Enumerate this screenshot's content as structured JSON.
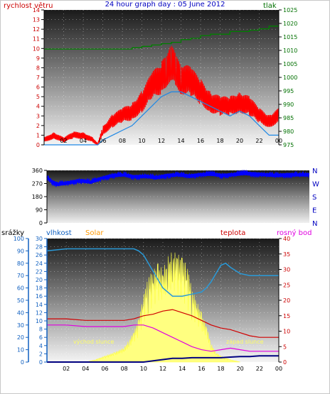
{
  "title": "24 hour graph day : 05 June 2012",
  "colors": {
    "wind": "#ff0000",
    "gust_line": "#1e88e5",
    "pressure": "#008000",
    "direction": "#0000ff",
    "humidity": "#2a9ad8",
    "solar": "#ffff80",
    "temperature": "#d00000",
    "dewpoint": "#e000e0",
    "rain": "#000080",
    "axis_blue": "#1060c0",
    "axis_red": "#cc0000",
    "axis_green": "#007000",
    "solar_label": "#ff9900"
  },
  "chart_data": [
    {
      "type": "line",
      "title": "24 hour graph day : 05 June 2012",
      "x_ticks": [
        "02",
        "04",
        "06",
        "08",
        "10",
        "12",
        "14",
        "16",
        "18",
        "20",
        "22",
        "00"
      ],
      "left_axis": {
        "label": "rychlost větru",
        "range": [
          0,
          14
        ],
        "ticks": [
          "0",
          "1",
          "2",
          "3",
          "4",
          "5",
          "6",
          "7",
          "8",
          "9",
          "10",
          "11",
          "12",
          "13",
          "14"
        ]
      },
      "right_axis": {
        "label": "tlak",
        "range": [
          975,
          1025
        ],
        "ticks": [
          "975",
          "980",
          "985",
          "990",
          "995",
          "1000",
          "1005",
          "1010",
          "1015",
          "1020",
          "1025"
        ]
      },
      "series": [
        {
          "name": "rychlost větru",
          "axis": "left",
          "x": [
            0,
            1,
            2,
            3,
            4,
            5,
            5.5,
            6,
            7,
            8,
            9,
            10,
            11,
            12,
            12.5,
            13,
            13.5,
            14,
            15,
            16,
            17,
            18,
            19,
            20,
            21,
            22,
            23,
            24
          ],
          "y": [
            0.5,
            1,
            0.5,
            1,
            1,
            0.5,
            0,
            1.5,
            2.5,
            3,
            3.5,
            4.5,
            6,
            7,
            8,
            8.5,
            7.5,
            7,
            6.5,
            5.5,
            4.5,
            4,
            4,
            4.5,
            4,
            3,
            2.5,
            3
          ]
        },
        {
          "name": "",
          "axis": "left",
          "x": [
            0,
            2,
            4,
            5.5,
            6,
            7,
            8,
            9,
            10,
            11,
            12,
            13,
            14,
            15,
            16,
            17,
            18,
            19,
            20,
            21,
            22,
            23,
            24
          ],
          "y": [
            0,
            0,
            0,
            0,
            0.5,
            1,
            1.5,
            2,
            3,
            4,
            5,
            5.5,
            5.5,
            5,
            4.5,
            4,
            3.5,
            3,
            3.5,
            3,
            2,
            1,
            1
          ]
        },
        {
          "name": "tlak",
          "axis": "right",
          "x": [
            0,
            2,
            4,
            6,
            8,
            9,
            10,
            11,
            12,
            13,
            14,
            15,
            16,
            17,
            18,
            19,
            20,
            21,
            22,
            23,
            24
          ],
          "y": [
            1010.5,
            1010.5,
            1010.5,
            1010.5,
            1010.5,
            1011,
            1011.5,
            1012,
            1012.5,
            1013,
            1014,
            1014.5,
            1015.5,
            1016,
            1016,
            1017,
            1017,
            1017.5,
            1018,
            1019,
            1019
          ]
        }
      ]
    },
    {
      "type": "line",
      "left_axis": {
        "range": [
          0,
          360
        ],
        "ticks": [
          "0",
          "90",
          "180",
          "270",
          "360"
        ]
      },
      "right_labels": [
        "N",
        "W",
        "S",
        "E",
        "N"
      ],
      "series": [
        {
          "name": "",
          "x": [
            0,
            0.5,
            1,
            2,
            3,
            4,
            5,
            6,
            7,
            8,
            9,
            10,
            11,
            12,
            13,
            14,
            15,
            16,
            17,
            18,
            19,
            20,
            21,
            22,
            23,
            24
          ],
          "y": [
            310,
            280,
            265,
            275,
            290,
            280,
            305,
            325,
            330,
            315,
            320,
            310,
            325,
            330,
            320,
            330,
            335,
            325,
            330,
            340,
            335,
            330,
            325,
            330,
            330,
            330
          ]
        }
      ]
    },
    {
      "type": "line",
      "x_ticks": [
        "02",
        "04",
        "06",
        "08",
        "10",
        "12",
        "14",
        "16",
        "18",
        "20",
        "22",
        "00"
      ],
      "axis_labels": {
        "rain": "srážky",
        "humidity": "vlhkost",
        "solar": "Solar",
        "temperature": "teplota",
        "dewpoint": "rosný bod"
      },
      "rain_axis": {
        "range": [
          0,
          100
        ],
        "ticks": [
          "0",
          "10",
          "20",
          "30",
          "40",
          "50",
          "60",
          "70",
          "80",
          "90",
          "100"
        ]
      },
      "humidity_axis": {
        "range": [
          0,
          30
        ],
        "ticks": [
          "0",
          "2",
          "4",
          "6",
          "8",
          "10",
          "12",
          "14",
          "16",
          "18",
          "20",
          "22",
          "24",
          "26",
          "28",
          "30"
        ]
      },
      "temp_axis": {
        "range": [
          0,
          40
        ],
        "ticks": [
          "0",
          "5",
          "10",
          "15",
          "20",
          "25",
          "30",
          "35",
          "40"
        ]
      },
      "annotations": {
        "sunrise": "východ slunce",
        "sunset": "západ slunce"
      },
      "series": [
        {
          "name": "vlhkost",
          "axis": "humidity",
          "x": [
            0,
            2,
            4,
            6,
            8,
            9,
            9.5,
            10,
            10.5,
            11,
            12,
            13,
            14,
            15,
            16,
            16.5,
            17,
            17.5,
            18,
            18.5,
            19,
            20,
            21,
            22,
            23,
            24
          ],
          "y": [
            27,
            27.5,
            27.5,
            27.5,
            27.5,
            27.5,
            27,
            26,
            24,
            22,
            18,
            16,
            16,
            16.5,
            17,
            18,
            19.5,
            21.5,
            23.5,
            24,
            23,
            21.5,
            21,
            21,
            21,
            21
          ]
        },
        {
          "name": "teplota",
          "axis": "temperature",
          "x": [
            0,
            2,
            4,
            6,
            8,
            9,
            10,
            11,
            12,
            13,
            14,
            15,
            16,
            17,
            18,
            19,
            20,
            21,
            22,
            23,
            24
          ],
          "y": [
            14,
            14,
            13.5,
            13.5,
            13.5,
            14,
            15,
            15.5,
            16.5,
            17,
            16,
            15,
            13.5,
            12,
            11,
            10.5,
            9.5,
            8.5,
            8,
            8,
            8
          ]
        },
        {
          "name": "rosný bod",
          "axis": "temperature",
          "x": [
            0,
            2,
            4,
            6,
            8,
            9,
            10,
            11,
            12,
            13,
            14,
            15,
            16,
            17,
            18,
            19,
            20,
            21,
            22,
            23,
            24
          ],
          "y": [
            12,
            12,
            11.5,
            11.5,
            11.5,
            12,
            12,
            11,
            9.5,
            8,
            6.5,
            5,
            4,
            3.5,
            4,
            4.5,
            4,
            3.5,
            3.5,
            3.5,
            3.5
          ]
        },
        {
          "name": "Solar",
          "axis": "solar",
          "x": [
            4,
            5,
            6,
            7,
            8,
            8.5,
            9,
            9.5,
            10,
            10.5,
            11,
            11.5,
            12,
            12.5,
            13,
            13.5,
            14,
            14.5,
            15,
            15.5,
            16,
            16.5,
            17,
            17.5,
            18,
            19,
            20
          ],
          "y": [
            0,
            2,
            5,
            8,
            12,
            18,
            25,
            35,
            55,
            70,
            75,
            80,
            75,
            85,
            90,
            88,
            85,
            80,
            60,
            50,
            40,
            30,
            15,
            8,
            5,
            2,
            0
          ]
        },
        {
          "name": "srážky",
          "axis": "rain",
          "x": [
            0,
            6,
            8,
            9,
            10,
            11,
            12,
            13,
            14,
            15,
            16,
            17,
            18,
            19,
            20,
            21,
            22,
            23,
            24
          ],
          "y": [
            0,
            0,
            0,
            0,
            0,
            1,
            2,
            3,
            3,
            3.5,
            3.5,
            3.5,
            3.5,
            4,
            4.5,
            4.5,
            5,
            5,
            5
          ]
        }
      ]
    }
  ]
}
